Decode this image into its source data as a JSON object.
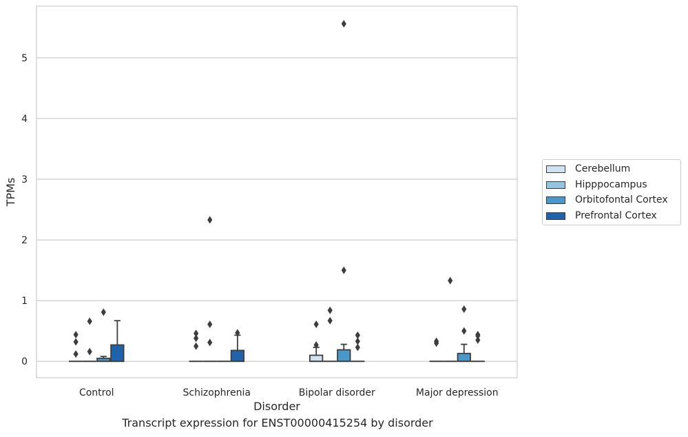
{
  "chart_data": {
    "type": "box",
    "title": "Transcript expression for ENST00000415254 by disorder",
    "xlabel": "Disorder",
    "ylabel": "TPMs",
    "ylim": [
      -0.27,
      5.85
    ],
    "yticks": [
      0,
      1,
      2,
      3,
      4,
      5
    ],
    "grid": "horizontal",
    "legend_position": "right",
    "categories": [
      "Control",
      "Schizophrenia",
      "Bipolar disorder",
      "Major depression"
    ],
    "series": [
      {
        "name": "Cerebellum",
        "color": "#d0e1f2",
        "boxes": [
          {
            "q1": 0,
            "median": 0,
            "q3": 0,
            "whisker_low": 0,
            "whisker_high": 0,
            "outliers": [
              0.44,
              0.32,
              0.12
            ]
          },
          {
            "q1": 0,
            "median": 0,
            "q3": 0,
            "whisker_low": 0,
            "whisker_high": 0,
            "outliers": [
              0.46,
              0.38,
              0.25
            ]
          },
          {
            "q1": 0,
            "median": 0,
            "q3": 0.1,
            "whisker_low": 0,
            "whisker_high": 0.23,
            "outliers": [
              0.61,
              0.27
            ]
          },
          {
            "q1": 0,
            "median": 0,
            "q3": 0,
            "whisker_low": 0,
            "whisker_high": 0,
            "outliers": [
              0.33,
              0.3
            ]
          }
        ]
      },
      {
        "name": "Hipppocampus",
        "color": "#94c4df",
        "boxes": [
          {
            "q1": 0,
            "median": 0,
            "q3": 0,
            "whisker_low": 0,
            "whisker_high": 0,
            "outliers": [
              0.66,
              0.16
            ]
          },
          {
            "q1": 0,
            "median": 0,
            "q3": 0,
            "whisker_low": 0,
            "whisker_high": 0,
            "outliers": [
              2.33,
              0.61,
              0.31
            ]
          },
          {
            "q1": 0,
            "median": 0,
            "q3": 0,
            "whisker_low": 0,
            "whisker_high": 0,
            "outliers": [
              0.84,
              0.67
            ]
          },
          {
            "q1": 0,
            "median": 0,
            "q3": 0,
            "whisker_low": 0,
            "whisker_high": 0,
            "outliers": [
              1.33
            ]
          }
        ]
      },
      {
        "name": "Orbitofontal Cortex",
        "color": "#4a98c9",
        "boxes": [
          {
            "q1": 0,
            "median": 0,
            "q3": 0.05,
            "whisker_low": 0,
            "whisker_high": 0.08,
            "outliers": [
              0.81
            ]
          },
          {
            "q1": 0,
            "median": 0,
            "q3": 0,
            "whisker_low": 0,
            "whisker_high": 0,
            "outliers": []
          },
          {
            "q1": 0,
            "median": 0,
            "q3": 0.19,
            "whisker_low": 0,
            "whisker_high": 0.28,
            "outliers": [
              5.56,
              1.5
            ]
          },
          {
            "q1": 0,
            "median": 0,
            "q3": 0.13,
            "whisker_low": 0,
            "whisker_high": 0.28,
            "outliers": [
              0.86,
              0.5
            ]
          }
        ]
      },
      {
        "name": "Prefrontal Cortex",
        "color": "#2163aa",
        "boxes": [
          {
            "q1": 0,
            "median": 0,
            "q3": 0.27,
            "whisker_low": 0,
            "whisker_high": 0.67,
            "outliers": []
          },
          {
            "q1": 0,
            "median": 0,
            "q3": 0.18,
            "whisker_low": 0,
            "whisker_high": 0.43,
            "outliers": [
              0.47
            ]
          },
          {
            "q1": 0,
            "median": 0,
            "q3": 0,
            "whisker_low": 0,
            "whisker_high": 0,
            "outliers": [
              0.43,
              0.33,
              0.23
            ]
          },
          {
            "q1": 0,
            "median": 0,
            "q3": 0,
            "whisker_low": 0,
            "whisker_high": 0,
            "outliers": [
              0.44,
              0.42,
              0.35
            ]
          }
        ]
      }
    ]
  }
}
